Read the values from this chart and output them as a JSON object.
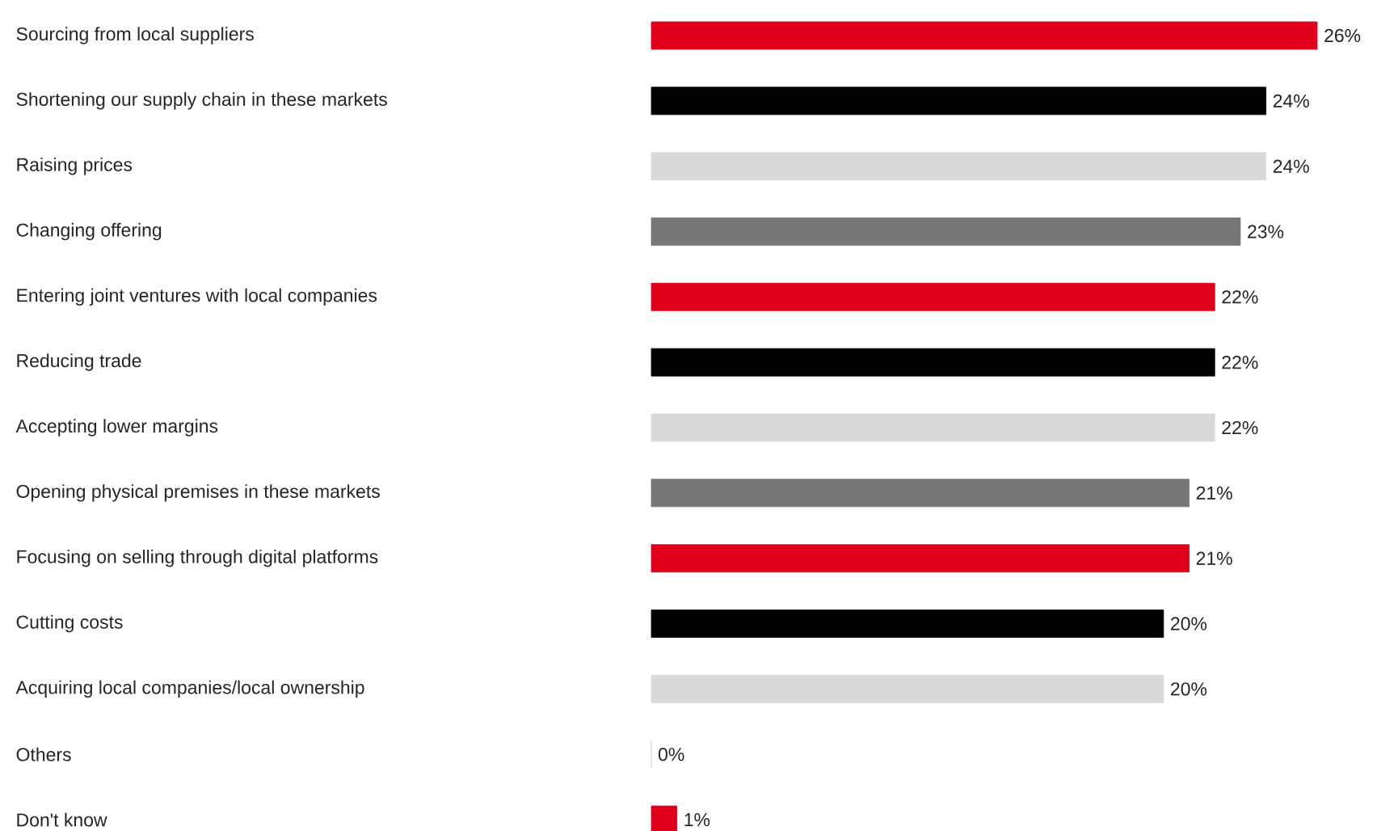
{
  "chart_data": {
    "type": "bar",
    "orientation": "horizontal",
    "categories": [
      "Sourcing from local suppliers",
      "Shortening our supply chain in these markets",
      "Raising prices",
      "Changing offering",
      "Entering joint ventures with local companies",
      "Reducing trade",
      "Accepting lower margins",
      "Opening physical premises in these markets",
      "Focusing on selling through digital platforms",
      "Cutting costs",
      "Acquiring local companies/local ownership",
      "Others",
      "Don't know"
    ],
    "values": [
      26,
      24,
      24,
      23,
      22,
      22,
      22,
      21,
      21,
      20,
      20,
      0,
      1
    ],
    "value_labels": [
      "26%",
      "24%",
      "24%",
      "23%",
      "22%",
      "22%",
      "22%",
      "21%",
      "21%",
      "20%",
      "20%",
      "0%",
      "1%"
    ],
    "colors": [
      "#e0001b",
      "#000000",
      "#d9d9d9",
      "#767676",
      "#e0001b",
      "#000000",
      "#d9d9d9",
      "#767676",
      "#e0001b",
      "#000000",
      "#d9d9d9",
      "#d9d9d9",
      "#e0001b"
    ]
  }
}
